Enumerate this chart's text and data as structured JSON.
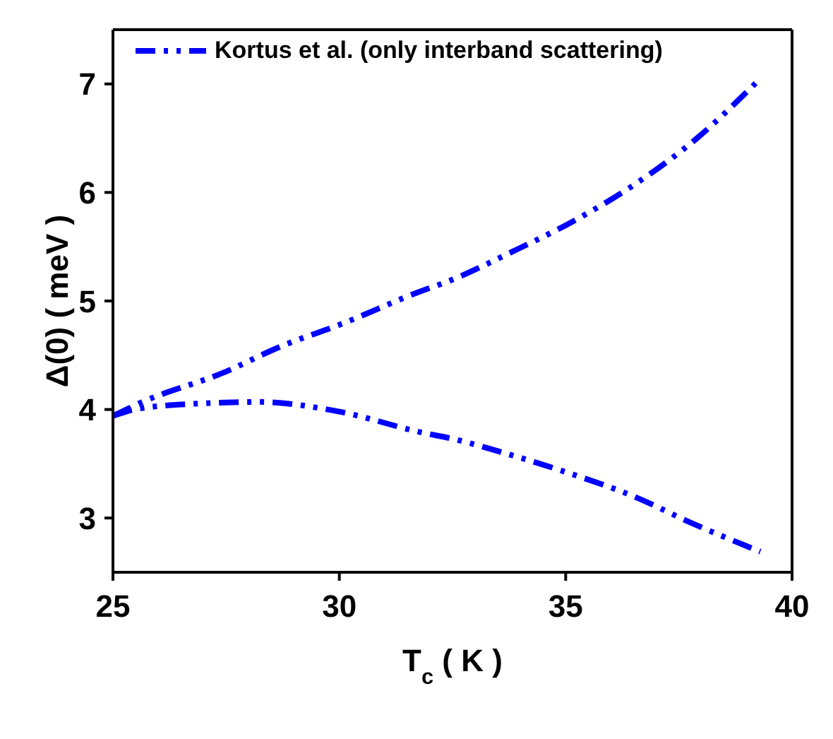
{
  "chart_data": {
    "type": "line",
    "xlabel": "T$_{c}$ ( K )",
    "ylabel": "Δ(0)  ( meV )",
    "xlim": [
      25,
      40
    ],
    "xticks": [
      25,
      30,
      35,
      40
    ],
    "ylim": [
      2.5,
      7.5
    ],
    "yticks": [
      3,
      4,
      5,
      6,
      7
    ],
    "legend": "top left",
    "line_style": "dashed",
    "marker": "none",
    "series": [
      {
        "name": "Kortus et al. (only interband scattering)",
        "color": "#0000ff",
        "x": [
          25,
          25.6,
          27.5,
          28.7,
          30,
          31.8,
          32.4,
          33.8,
          35.1,
          36.4,
          37.9,
          39.3
        ],
        "values": [
          3.94,
          4.06,
          4.35,
          4.58,
          4.78,
          5.09,
          5.18,
          5.45,
          5.72,
          6.04,
          6.5,
          7.05
        ]
      },
      {
        "color": "#0000ff",
        "x": [
          25,
          25.6,
          27.2,
          28.2,
          30,
          31.8,
          32.5,
          33.8,
          35.1,
          36.5,
          37.8,
          39.3
        ],
        "values": [
          3.94,
          4.01,
          4.06,
          4.07,
          3.98,
          3.79,
          3.73,
          3.58,
          3.41,
          3.2,
          2.95,
          2.69
        ]
      }
    ]
  }
}
